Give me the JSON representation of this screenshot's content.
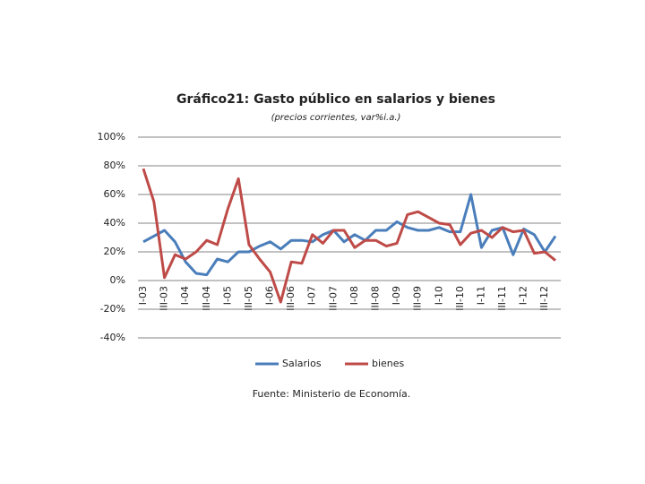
{
  "chart_data": {
    "type": "line",
    "title": "Gráfico21: Gasto público en salarios y bienes",
    "subtitle": "(precios corrientes, var%i.a.)",
    "source": "Fuente: Ministerio de Economía.",
    "categories": [
      "I-03",
      null,
      "III-03",
      null,
      "I-04",
      null,
      "III-04",
      null,
      "I-05",
      null,
      "III-05",
      null,
      "I-06",
      null,
      "III-06",
      null,
      "I-07",
      null,
      "III-07",
      null,
      "I-08",
      null,
      "III-08",
      null,
      "I-09",
      null,
      "III-09",
      null,
      "I-10",
      null,
      "III-10",
      null,
      "I-11",
      null,
      "III-11",
      null,
      "I-12",
      null,
      "III-12",
      null
    ],
    "series": [
      {
        "name": "Salarios",
        "color": "#4a7ebb",
        "values": [
          27,
          31,
          35,
          27,
          13,
          5,
          4,
          15,
          13,
          20,
          20,
          24,
          27,
          22,
          28,
          28,
          27,
          32,
          35,
          27,
          32,
          28,
          35,
          35,
          41,
          37,
          35,
          35,
          37,
          34,
          34,
          60,
          23,
          35,
          37,
          18,
          36,
          32,
          20,
          31
        ]
      },
      {
        "name": "bienes",
        "color": "#be4b48",
        "values": [
          78,
          55,
          2,
          18,
          15,
          20,
          28,
          25,
          50,
          71,
          25,
          15,
          6,
          -15,
          13,
          12,
          32,
          26,
          35,
          35,
          23,
          28,
          28,
          24,
          26,
          46,
          48,
          44,
          40,
          39,
          25,
          33,
          35,
          30,
          37,
          34,
          35,
          19,
          20,
          14
        ]
      }
    ],
    "ylim": [
      -40,
      100
    ],
    "yticks": [
      {
        "value": -40,
        "label": "-40%"
      },
      {
        "value": -20,
        "label": "-20%"
      },
      {
        "value": 0,
        "label": "0%"
      },
      {
        "value": 20,
        "label": "20%"
      },
      {
        "value": 40,
        "label": "40%"
      },
      {
        "value": 60,
        "label": "60%"
      },
      {
        "value": 80,
        "label": "80%"
      },
      {
        "value": 100,
        "label": "100%"
      }
    ],
    "grid": true,
    "legend": "bottom"
  }
}
